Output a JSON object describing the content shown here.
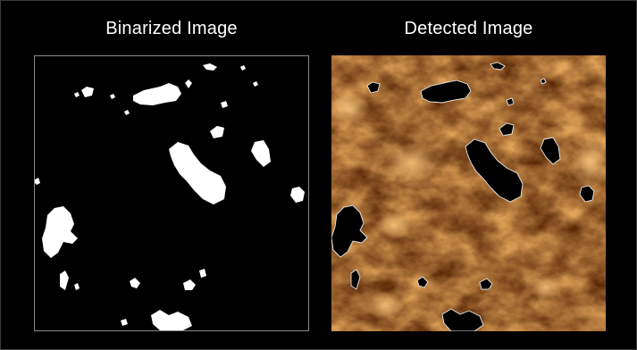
{
  "figure": {
    "left_title": "Binarized Image",
    "right_title": "Detected Image"
  },
  "colors": {
    "background": "#000000",
    "mask_white": "#ffffff",
    "panel_border": "#8a8a8a",
    "solar_dark": "#3a1600",
    "solar_mid": "#8a4a14",
    "solar_bright": "#e2a45a",
    "contour": "#e8e8e8"
  }
}
